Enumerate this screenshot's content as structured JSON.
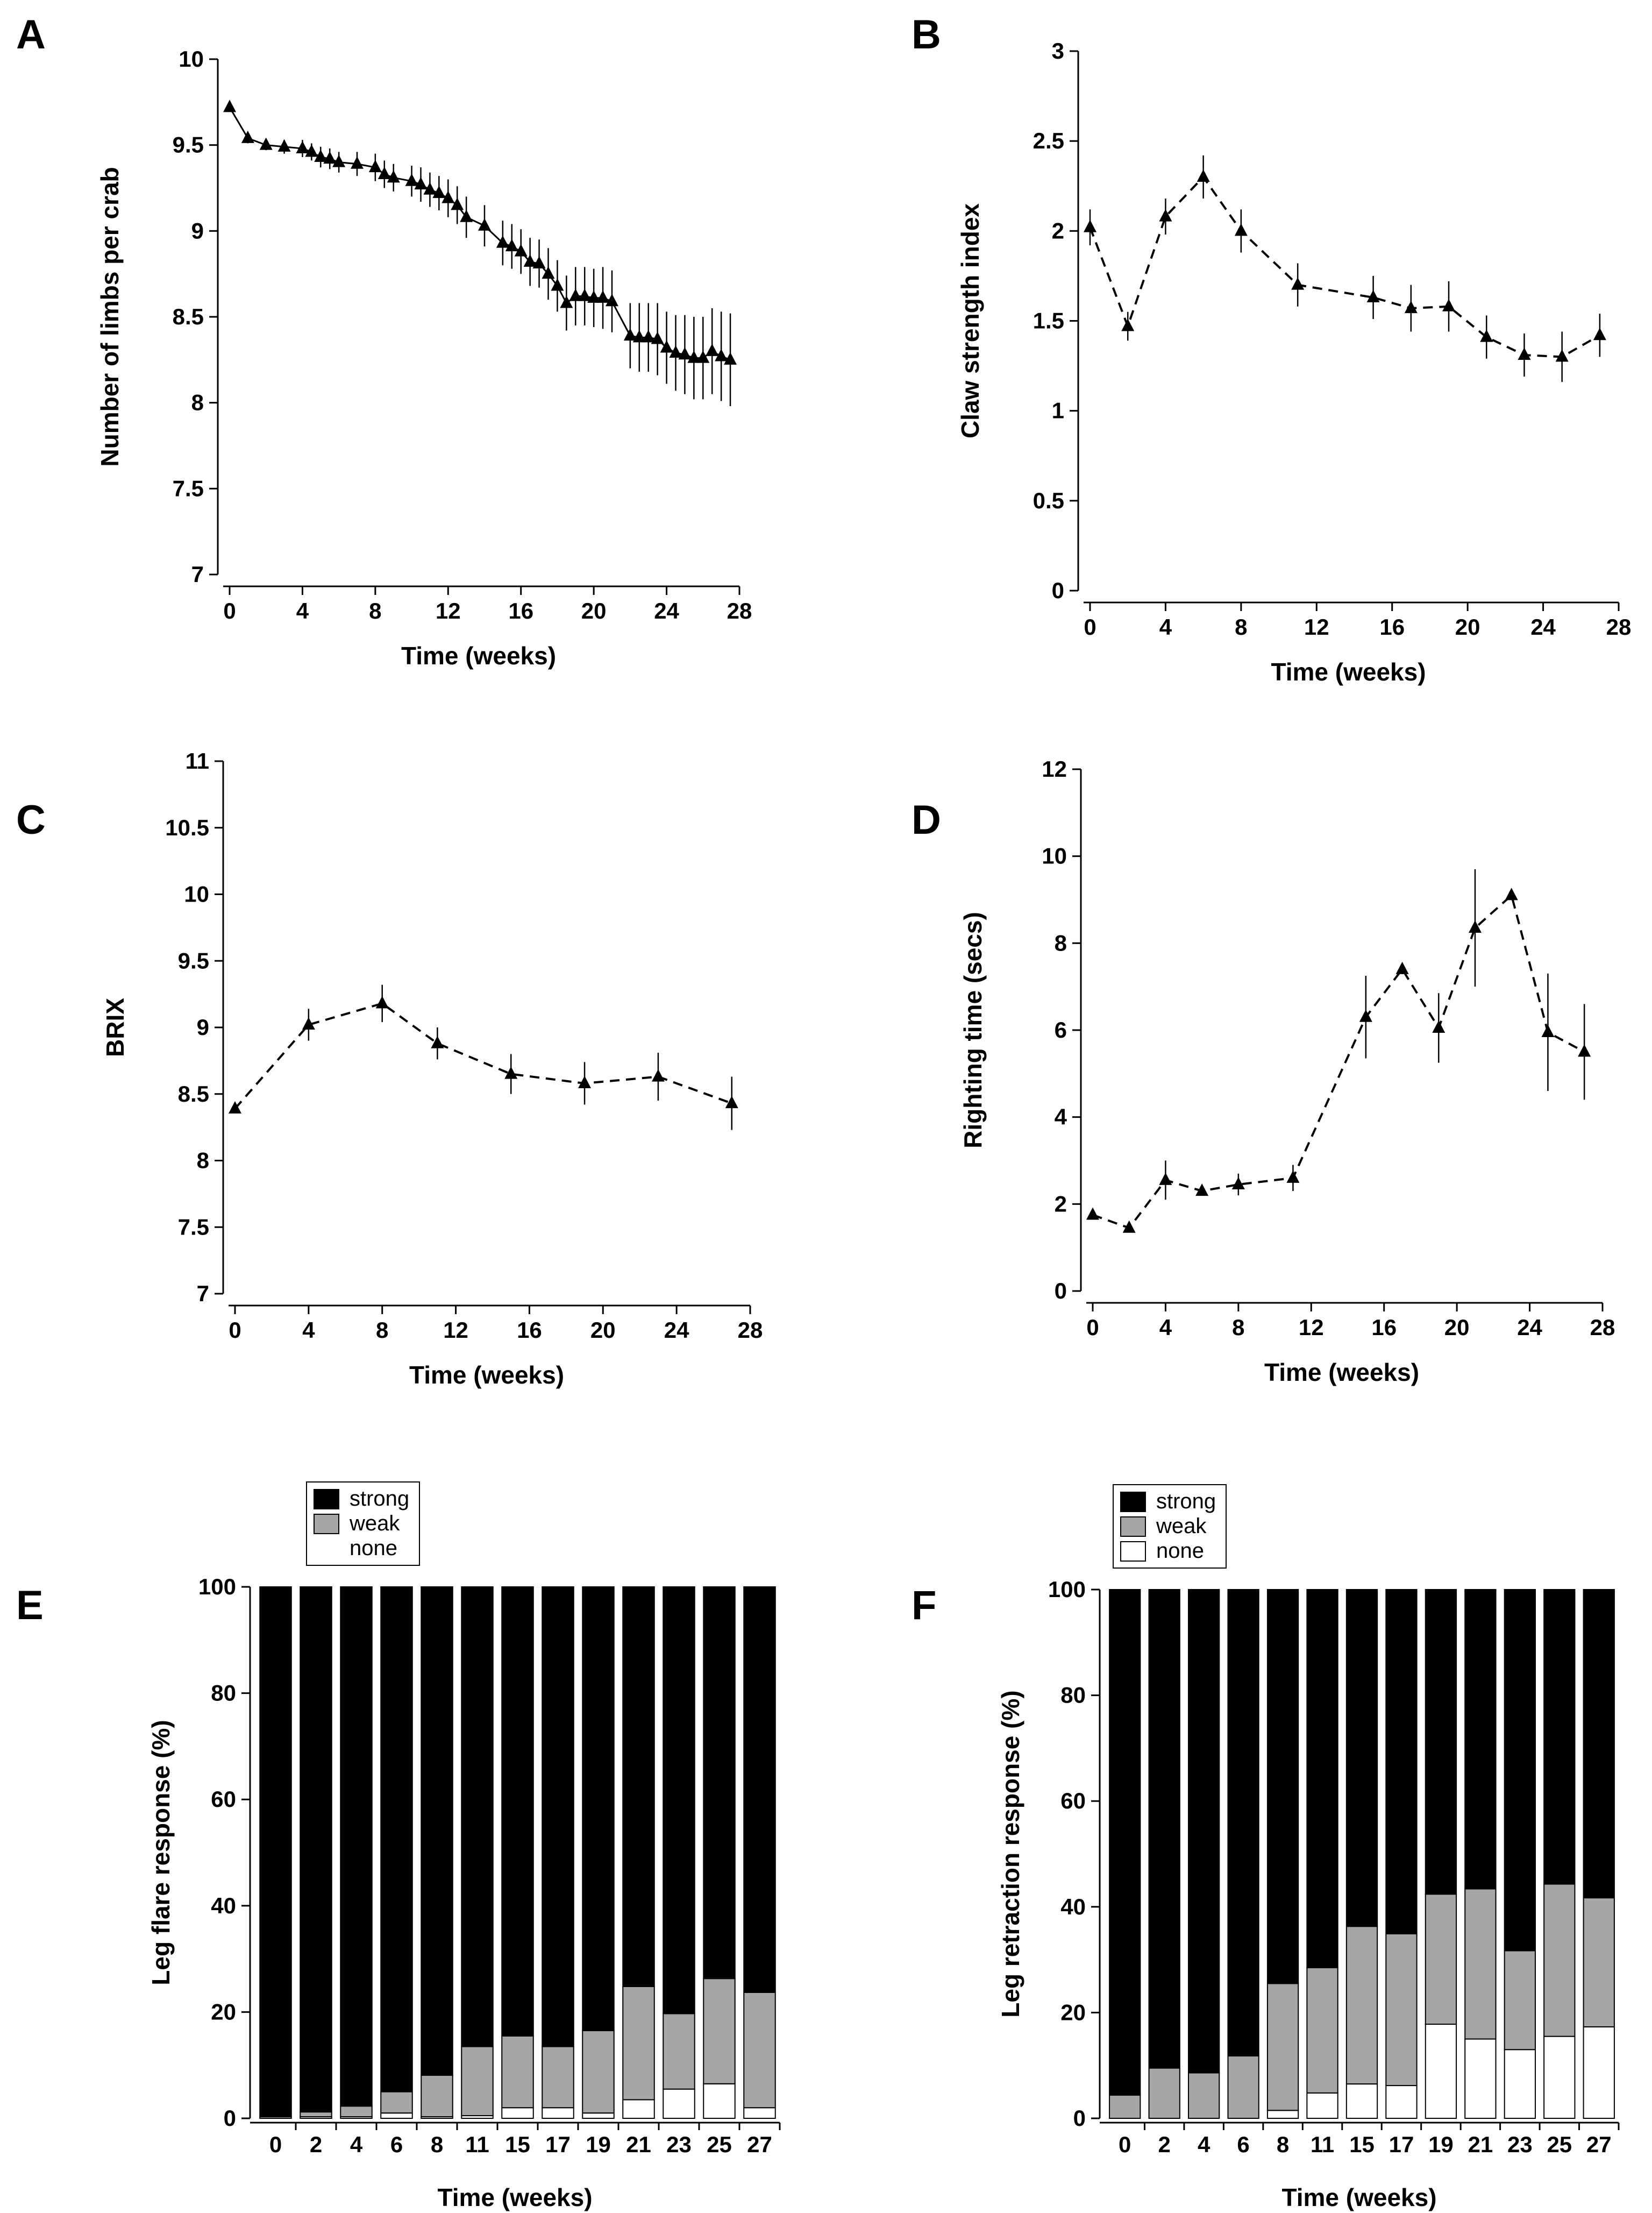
{
  "chart_data": [
    {
      "id": "A",
      "type": "line",
      "panel_label": "A",
      "xlabel": "Time (weeks)",
      "ylabel": "Number of limbs per crab",
      "xlim": [
        0,
        28
      ],
      "ylim": [
        7,
        10
      ],
      "xticks": [
        0,
        4,
        8,
        12,
        16,
        20,
        24,
        28
      ],
      "yticks": [
        7,
        7.5,
        8,
        8.5,
        9,
        9.5,
        10
      ],
      "ytick_labels": [
        "7",
        "7.5",
        "8",
        "8.5",
        "9",
        "9.5",
        "10"
      ],
      "line_style": "solid",
      "series": [
        {
          "x": [
            0,
            1,
            2,
            3,
            4,
            4.5,
            5,
            5.5,
            6,
            7,
            8,
            8.5,
            9,
            10,
            10.5,
            11,
            11.5,
            12,
            12.5,
            13,
            14,
            15,
            15.5,
            16,
            16.5,
            17,
            17.5,
            18,
            18.5,
            19,
            19.5,
            20,
            20.5,
            21,
            22,
            22.5,
            23,
            23.5,
            24,
            24.5,
            25,
            25.5,
            26,
            26.5,
            27,
            27.5
          ],
          "y": [
            9.72,
            9.54,
            9.5,
            9.49,
            9.48,
            9.46,
            9.43,
            9.42,
            9.4,
            9.39,
            9.37,
            9.33,
            9.31,
            9.29,
            9.27,
            9.24,
            9.22,
            9.19,
            9.15,
            9.08,
            9.03,
            8.93,
            8.91,
            8.88,
            8.82,
            8.81,
            8.75,
            8.68,
            8.58,
            8.62,
            8.62,
            8.61,
            8.61,
            8.59,
            8.39,
            8.38,
            8.38,
            8.37,
            8.32,
            8.29,
            8.28,
            8.26,
            8.26,
            8.3,
            8.27,
            8.25
          ],
          "err": [
            0.02,
            0.03,
            0.03,
            0.04,
            0.05,
            0.05,
            0.06,
            0.06,
            0.06,
            0.07,
            0.08,
            0.08,
            0.08,
            0.09,
            0.1,
            0.1,
            0.1,
            0.11,
            0.11,
            0.12,
            0.12,
            0.13,
            0.13,
            0.13,
            0.14,
            0.14,
            0.15,
            0.15,
            0.16,
            0.17,
            0.17,
            0.17,
            0.18,
            0.18,
            0.19,
            0.2,
            0.2,
            0.21,
            0.21,
            0.22,
            0.23,
            0.24,
            0.24,
            0.25,
            0.26,
            0.27
          ]
        }
      ]
    },
    {
      "id": "B",
      "type": "line",
      "panel_label": "B",
      "xlabel": "Time (weeks)",
      "ylabel": "Claw strength index",
      "xlim": [
        0,
        28
      ],
      "ylim": [
        0,
        3
      ],
      "xticks": [
        0,
        4,
        8,
        12,
        16,
        20,
        24,
        28
      ],
      "yticks": [
        0,
        0.5,
        1,
        1.5,
        2,
        2.5,
        3
      ],
      "ytick_labels": [
        "0",
        "0.5",
        "1",
        "1.5",
        "2",
        "2.5",
        "3"
      ],
      "line_style": "dashed",
      "series": [
        {
          "x": [
            0,
            2,
            4,
            6,
            8,
            11,
            15,
            17,
            19,
            21,
            23,
            25,
            27
          ],
          "y": [
            2.02,
            1.47,
            2.08,
            2.3,
            2.0,
            1.7,
            1.63,
            1.57,
            1.58,
            1.41,
            1.31,
            1.3,
            1.42
          ],
          "err": [
            0.1,
            0.08,
            0.1,
            0.12,
            0.12,
            0.12,
            0.12,
            0.13,
            0.14,
            0.12,
            0.12,
            0.14,
            0.12
          ]
        }
      ]
    },
    {
      "id": "C",
      "type": "line",
      "panel_label": "C",
      "xlabel": "Time (weeks)",
      "ylabel": "BRIX",
      "xlim": [
        0,
        28
      ],
      "ylim": [
        7,
        11
      ],
      "xticks": [
        0,
        4,
        8,
        12,
        16,
        20,
        24,
        28
      ],
      "yticks": [
        7,
        7.5,
        8,
        8.5,
        9,
        9.5,
        10,
        10.5,
        11
      ],
      "ytick_labels": [
        "7",
        "7.5",
        "8",
        "8.5",
        "9",
        "9.5",
        "10",
        "10.5",
        "11"
      ],
      "line_style": "dashed",
      "series": [
        {
          "x": [
            0,
            4,
            8,
            11,
            15,
            19,
            23,
            27
          ],
          "y": [
            8.39,
            9.02,
            9.18,
            8.88,
            8.65,
            8.58,
            8.63,
            8.43
          ],
          "err": [
            0.02,
            0.12,
            0.14,
            0.12,
            0.15,
            0.16,
            0.18,
            0.2
          ]
        }
      ]
    },
    {
      "id": "D",
      "type": "line",
      "panel_label": "D",
      "xlabel": "Time (weeks)",
      "ylabel": "Righting time (secs)",
      "xlim": [
        0,
        28
      ],
      "ylim": [
        0,
        12
      ],
      "xticks": [
        0,
        4,
        8,
        12,
        16,
        20,
        24,
        28
      ],
      "yticks": [
        0,
        2,
        4,
        6,
        8,
        10,
        12
      ],
      "ytick_labels": [
        "0",
        "2",
        "4",
        "6",
        "8",
        "10",
        "12"
      ],
      "line_style": "dashed",
      "series": [
        {
          "x": [
            0,
            2,
            4,
            6,
            8,
            11,
            15,
            17,
            19,
            21,
            23,
            25,
            27
          ],
          "y": [
            1.75,
            1.45,
            2.55,
            2.3,
            2.45,
            2.6,
            6.3,
            7.4,
            6.05,
            8.35,
            9.1,
            5.95,
            5.5
          ],
          "err": [
            0.05,
            0.05,
            0.45,
            0.1,
            0.25,
            0.3,
            0.95,
            0.1,
            0.8,
            1.35,
            0.1,
            1.35,
            1.1
          ]
        }
      ]
    },
    {
      "id": "E",
      "type": "bar",
      "stacked": true,
      "panel_label": "E",
      "xlabel": "Time (weeks)",
      "ylabel": "Leg flare response (%)",
      "ylim": [
        0,
        100
      ],
      "yticks": [
        0,
        20,
        40,
        60,
        80,
        100
      ],
      "ytick_labels": [
        "0",
        "20",
        "40",
        "60",
        "80",
        "100"
      ],
      "categories": [
        "0",
        "2",
        "4",
        "6",
        "8",
        "11",
        "15",
        "17",
        "19",
        "21",
        "23",
        "25",
        "27"
      ],
      "legend": [
        "strong",
        "weak",
        "none"
      ],
      "series": [
        {
          "name": "none",
          "color": "#ffffff",
          "values": [
            0,
            0.3,
            0.3,
            1,
            0.3,
            0.5,
            2,
            2,
            1,
            3.5,
            5.5,
            6.5,
            2
          ]
        },
        {
          "name": "weak",
          "color": "#a6a6a6",
          "values": [
            0.3,
            0.9,
            2,
            4,
            7.8,
            13,
            13.5,
            11.5,
            15.5,
            21.3,
            14.2,
            19.8,
            21.7
          ]
        },
        {
          "name": "strong",
          "color": "#000000",
          "values": [
            99.7,
            98.8,
            97.7,
            95,
            91.9,
            86.5,
            84.5,
            86.5,
            83.5,
            75.2,
            80.3,
            73.7,
            76.3
          ]
        }
      ]
    },
    {
      "id": "F",
      "type": "bar",
      "stacked": true,
      "panel_label": "F",
      "xlabel": "Time (weeks)",
      "ylabel": "Leg retraction response (%)",
      "ylim": [
        0,
        100
      ],
      "yticks": [
        0,
        20,
        40,
        60,
        80,
        100
      ],
      "ytick_labels": [
        "0",
        "20",
        "40",
        "60",
        "80",
        "100"
      ],
      "categories": [
        "0",
        "2",
        "4",
        "6",
        "8",
        "11",
        "15",
        "17",
        "19",
        "21",
        "23",
        "25",
        "27"
      ],
      "legend": [
        "strong",
        "weak",
        "none"
      ],
      "series": [
        {
          "name": "none",
          "color": "#ffffff",
          "values": [
            0,
            0,
            0,
            0,
            1.5,
            4.8,
            6.5,
            6.2,
            17.8,
            15,
            13,
            15.5,
            17.3
          ]
        },
        {
          "name": "weak",
          "color": "#a6a6a6",
          "values": [
            4.4,
            9.5,
            8.6,
            11.8,
            24,
            23.7,
            29.8,
            28.7,
            24.6,
            28.4,
            18.7,
            28.8,
            24.4
          ]
        },
        {
          "name": "strong",
          "color": "#000000",
          "values": [
            95.6,
            90.5,
            91.4,
            88.2,
            74.5,
            71.5,
            63.7,
            65.1,
            57.6,
            56.6,
            68.3,
            55.7,
            58.3
          ]
        }
      ]
    }
  ]
}
